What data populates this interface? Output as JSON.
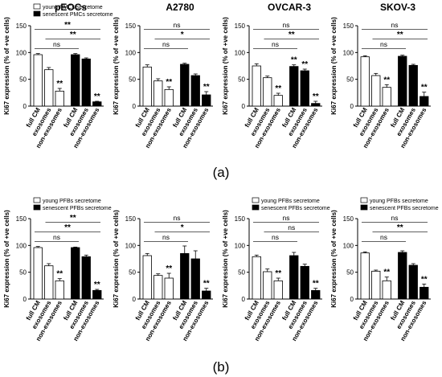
{
  "chart_data": [
    {
      "type": "bar",
      "row": 0,
      "title": "pEOCs",
      "ylabel": "Ki67 expression (% of +ve cells)",
      "ylim": [
        0,
        150
      ],
      "yticks": [
        0,
        50,
        100,
        150
      ],
      "categories": [
        "full CM",
        "exosomes",
        "non-exosomes",
        "full CM",
        "exosomes",
        "non-exosomes"
      ],
      "values": [
        96,
        68,
        28,
        96,
        88,
        8
      ],
      "errors": [
        2,
        4,
        5,
        2,
        2,
        1
      ],
      "fill": [
        "white",
        "white",
        "white",
        "black",
        "black",
        "black"
      ],
      "stars": [
        "",
        "",
        "**",
        "",
        "",
        "**"
      ],
      "legend": [
        "young PMCs secretome",
        "senescent PMCs secretome"
      ],
      "brackets": [
        {
          "from": 0,
          "to": 5,
          "level": 1,
          "label": "**"
        },
        {
          "from": 1,
          "to": 5,
          "level": 2,
          "label": "**"
        },
        {
          "from": 0,
          "to": 3,
          "level": 3,
          "label": "ns"
        }
      ]
    },
    {
      "type": "bar",
      "row": 0,
      "title": "A2780",
      "ylabel": "Ki67 expression (% of +ve cells)",
      "ylim": [
        0,
        150
      ],
      "yticks": [
        0,
        50,
        100,
        150
      ],
      "categories": [
        "full CM",
        "exosomes",
        "non-exosomes",
        "full CM",
        "exosomes",
        "non-exosomes"
      ],
      "values": [
        73,
        47,
        31,
        78,
        57,
        21
      ],
      "errors": [
        4,
        4,
        5,
        2,
        3,
        6
      ],
      "fill": [
        "white",
        "white",
        "white",
        "black",
        "black",
        "black"
      ],
      "stars": [
        "",
        "",
        "**",
        "",
        "",
        "**"
      ],
      "legend": [],
      "brackets": [
        {
          "from": 0,
          "to": 5,
          "level": 1,
          "label": "ns"
        },
        {
          "from": 1,
          "to": 5,
          "level": 2,
          "label": "*"
        },
        {
          "from": 0,
          "to": 3,
          "level": 3,
          "label": "ns"
        }
      ]
    },
    {
      "type": "bar",
      "row": 0,
      "title": "OVCAR-3",
      "ylabel": "Ki67 expression (% of +ve cells)",
      "ylim": [
        0,
        150
      ],
      "yticks": [
        0,
        50,
        100,
        150
      ],
      "categories": [
        "full CM",
        "exosomes",
        "non-exosomes",
        "full CM",
        "exosomes",
        "non-exosomes"
      ],
      "values": [
        75,
        53,
        20,
        74,
        66,
        5
      ],
      "errors": [
        4,
        3,
        4,
        3,
        3,
        4
      ],
      "fill": [
        "white",
        "white",
        "white",
        "black",
        "black",
        "black"
      ],
      "stars": [
        "",
        "",
        "**",
        "**",
        "**",
        "**"
      ],
      "legend": [],
      "brackets": [
        {
          "from": 0,
          "to": 5,
          "level": 1,
          "label": "ns"
        },
        {
          "from": 1,
          "to": 5,
          "level": 2,
          "label": "**"
        },
        {
          "from": 0,
          "to": 3,
          "level": 3,
          "label": "ns"
        }
      ]
    },
    {
      "type": "bar",
      "row": 0,
      "title": "SKOV-3",
      "ylabel": "Ki67 expression (% of +ve cells)",
      "ylim": [
        0,
        150
      ],
      "yticks": [
        0,
        50,
        100,
        150
      ],
      "categories": [
        "full CM",
        "exosomes",
        "non-exosomes",
        "full CM",
        "exosomes",
        "non-exosomes"
      ],
      "values": [
        92,
        57,
        35,
        93,
        76,
        18
      ],
      "errors": [
        2,
        4,
        5,
        2,
        2,
        8
      ],
      "fill": [
        "white",
        "white",
        "white",
        "black",
        "black",
        "black"
      ],
      "stars": [
        "",
        "",
        "**",
        "",
        "",
        "**"
      ],
      "legend": [],
      "brackets": [
        {
          "from": 0,
          "to": 5,
          "level": 1,
          "label": "ns"
        },
        {
          "from": 1,
          "to": 5,
          "level": 2,
          "label": "**"
        },
        {
          "from": 0,
          "to": 3,
          "level": 3,
          "label": "ns"
        }
      ]
    },
    {
      "type": "bar",
      "row": 1,
      "title": "",
      "ylabel": "Ki67 expression (% of +ve cells)",
      "ylim": [
        0,
        150
      ],
      "yticks": [
        0,
        50,
        100,
        150
      ],
      "categories": [
        "full CM",
        "exosomes",
        "non-exosomes",
        "full CM",
        "exosomes",
        "non-exosomes"
      ],
      "values": [
        96,
        62,
        34,
        96,
        79,
        16
      ],
      "errors": [
        2,
        4,
        4,
        1,
        3,
        2
      ],
      "fill": [
        "white",
        "white",
        "white",
        "black",
        "black",
        "black"
      ],
      "stars": [
        "",
        "",
        "**",
        "",
        "",
        "**"
      ],
      "legend": [
        "young PFBs secretome",
        "senescent PFBs secretome"
      ],
      "brackets": [
        {
          "from": 1,
          "to": 5,
          "level": 1,
          "label": "**"
        },
        {
          "from": 0,
          "to": 5,
          "level": 2,
          "label": "**"
        },
        {
          "from": 0,
          "to": 3,
          "level": 3,
          "label": "ns"
        }
      ]
    },
    {
      "type": "bar",
      "row": 1,
      "title": "",
      "ylabel": "Ki67 expression (% of +ve cells)",
      "ylim": [
        0,
        150
      ],
      "yticks": [
        0,
        50,
        100,
        150
      ],
      "categories": [
        "full CM",
        "exosomes",
        "non-exosomes",
        "full CM",
        "exosomes",
        "non-exosomes"
      ],
      "values": [
        81,
        44,
        39,
        85,
        75,
        15
      ],
      "errors": [
        4,
        3,
        9,
        14,
        15,
        5
      ],
      "fill": [
        "white",
        "white",
        "white",
        "black",
        "black",
        "black"
      ],
      "stars": [
        "",
        "",
        "**",
        "",
        "",
        "**"
      ],
      "legend": [],
      "brackets": [
        {
          "from": 0,
          "to": 5,
          "level": 1,
          "label": "ns"
        },
        {
          "from": 1,
          "to": 5,
          "level": 2,
          "label": "*"
        },
        {
          "from": 0,
          "to": 3,
          "level": 3,
          "label": "ns"
        }
      ]
    },
    {
      "type": "bar",
      "row": 1,
      "title": "",
      "ylabel": "Ki67 expression (% of +ve cells)",
      "ylim": [
        0,
        150
      ],
      "yticks": [
        0,
        50,
        100,
        150
      ],
      "categories": [
        "full CM",
        "exosomes",
        "non-exosomes",
        "full CM",
        "exosomes",
        "non-exosomes"
      ],
      "values": [
        79,
        51,
        34,
        81,
        61,
        16
      ],
      "errors": [
        3,
        5,
        5,
        6,
        4,
        4
      ],
      "fill": [
        "white",
        "white",
        "white",
        "black",
        "black",
        "black"
      ],
      "stars": [
        "",
        "",
        "**",
        "",
        "",
        "**"
      ],
      "legend": [
        "young PFBs secretome",
        "senescent PFBs secretome"
      ],
      "brackets": [
        {
          "from": 0,
          "to": 5,
          "level": 1,
          "label": "ns"
        },
        {
          "from": 1,
          "to": 5,
          "level": 2,
          "label": "ns"
        },
        {
          "from": 0,
          "to": 3,
          "level": 3,
          "label": "ns"
        }
      ]
    },
    {
      "type": "bar",
      "row": 1,
      "title": "",
      "ylabel": "Ki67 expression (% of +ve cells)",
      "ylim": [
        0,
        150
      ],
      "yticks": [
        0,
        50,
        100,
        150
      ],
      "categories": [
        "full CM",
        "exosomes",
        "non-exosomes",
        "full CM",
        "exosomes",
        "non-exosomes"
      ],
      "values": [
        86,
        52,
        34,
        87,
        63,
        22
      ],
      "errors": [
        2,
        2,
        7,
        3,
        3,
        6
      ],
      "fill": [
        "white",
        "white",
        "white",
        "black",
        "black",
        "black"
      ],
      "stars": [
        "",
        "",
        "**",
        "",
        "",
        "**"
      ],
      "legend": [
        "young PFBs secretome",
        "senescent PFBs secretome"
      ],
      "brackets": [
        {
          "from": 0,
          "to": 5,
          "level": 1,
          "label": "ns"
        },
        {
          "from": 1,
          "to": 5,
          "level": 2,
          "label": "**"
        },
        {
          "from": 0,
          "to": 3,
          "level": 3,
          "label": "ns"
        }
      ]
    }
  ],
  "panel_labels": [
    "(a)",
    "(b)"
  ]
}
